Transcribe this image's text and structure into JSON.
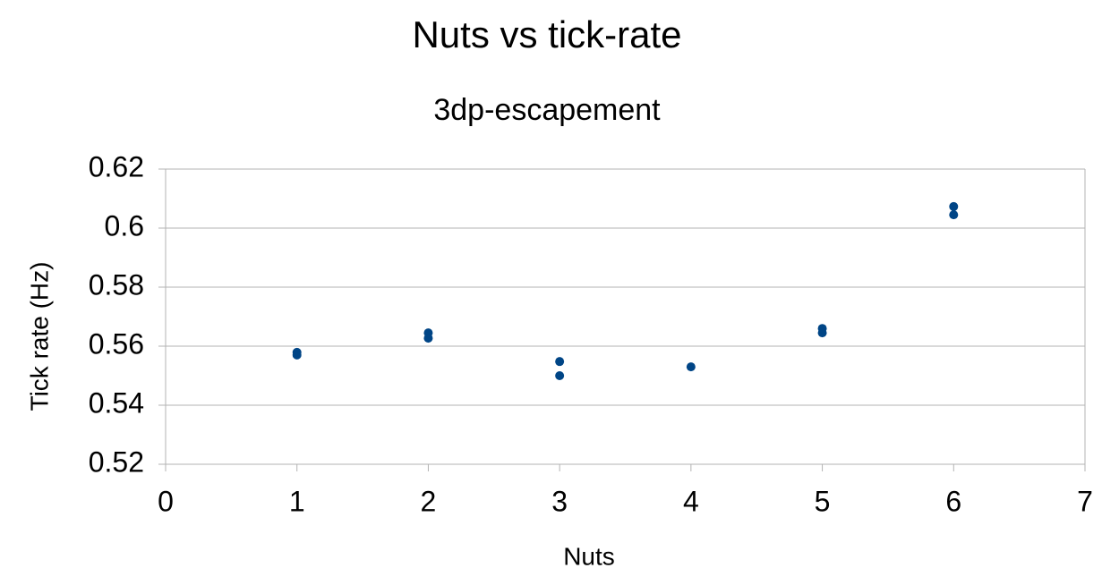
{
  "chart_data": {
    "type": "scatter",
    "title": "Nuts vs tick-rate",
    "subtitle": "3dp-escapement",
    "x_label": "Nuts",
    "y_label": "Tick rate (Hz)",
    "x": [
      1,
      1,
      2,
      2,
      3,
      3,
      4,
      5,
      5,
      6,
      6
    ],
    "values": [
      0.5579,
      0.557,
      0.5645,
      0.5627,
      0.5548,
      0.55,
      0.553,
      0.566,
      0.5645,
      0.6073,
      0.6045
    ],
    "color": "#004586",
    "xlim": [
      0,
      7
    ],
    "xticks": [
      0,
      1,
      2,
      3,
      4,
      5,
      6,
      7
    ],
    "ylim": [
      0.52,
      0.62
    ],
    "yticks": [
      0.52,
      0.54,
      0.56,
      0.58,
      0.6,
      0.62
    ],
    "grid": true
  }
}
